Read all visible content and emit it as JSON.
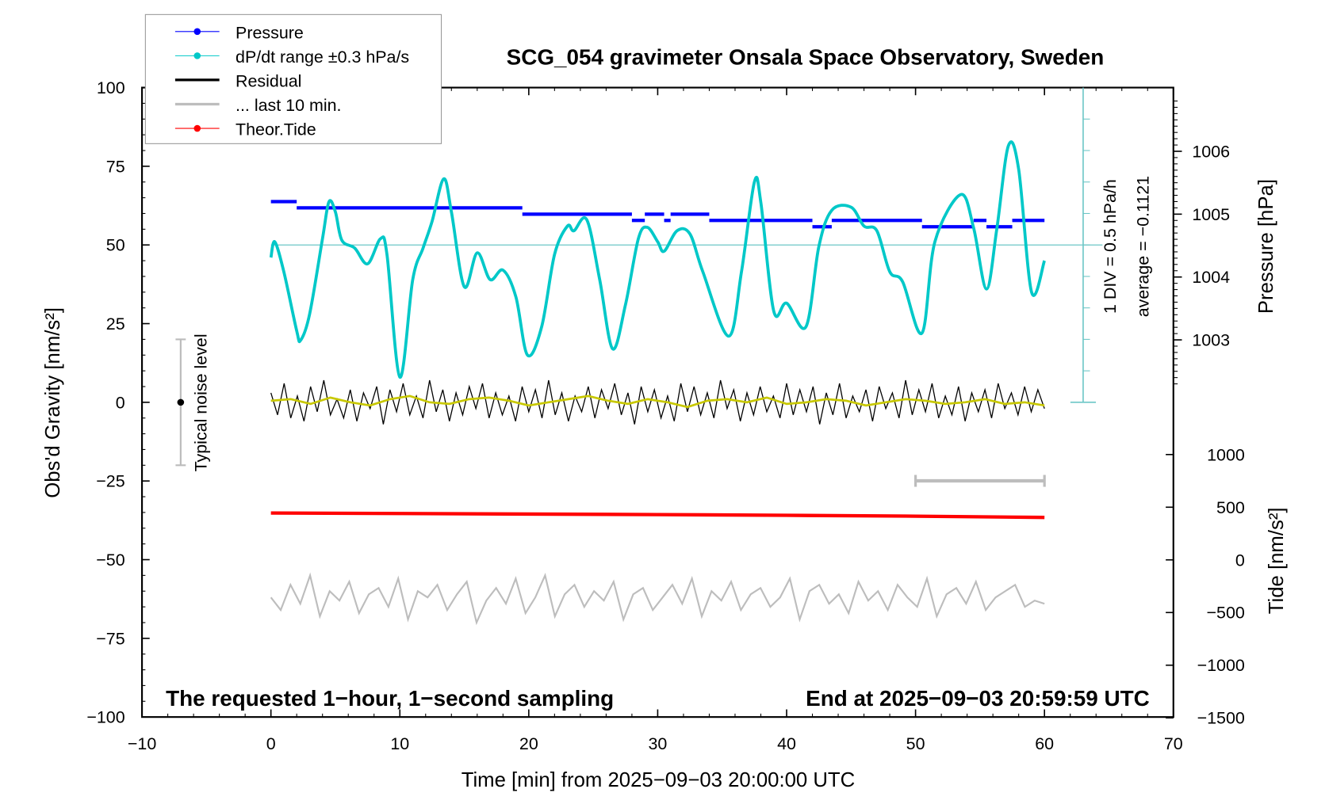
{
  "chart_data": {
    "type": "line",
    "title": "SCG_054 gravimeter Onsala Space Observatory, Sweden",
    "xlabel": "Time [min] from 2025−09−03 20:00:00 UTC",
    "ylabel": "Obs'd Gravity [nm/s²]",
    "ylabel_right_top": "Pressure [hPa]",
    "ylabel_right_bottom": "Tide [nm/s²]",
    "xlim": [
      -10,
      70
    ],
    "ylim": [
      -100,
      100
    ],
    "xticks": [
      "−10",
      "0",
      "10",
      "20",
      "30",
      "40",
      "50",
      "60",
      "70"
    ],
    "yticks": [
      "100",
      "75",
      "50",
      "25",
      "0",
      "−25",
      "−50",
      "−75",
      "−100"
    ],
    "pressure_ticks": [
      "1006",
      "1005",
      "1004",
      "1003"
    ],
    "tide_ticks": [
      "1000",
      "500",
      "0",
      "−500",
      "−1000",
      "−1500"
    ],
    "annotations": {
      "bottom_left": "The requested 1−hour, 1−second sampling",
      "bottom_right": "End at 2025−09−03 20:59:59 UTC",
      "div": "1 DIV = 0.5 hPa/h",
      "average": "average = −0.1121",
      "noise": "Typical noise level"
    },
    "legend": {
      "placement": "top-left",
      "entries": [
        {
          "label": "Pressure",
          "color": "#0000ff"
        },
        {
          "label": "dP/dt range ±0.3 hPa/s",
          "color": "#00c8c8"
        },
        {
          "label": "Residual",
          "color": "#000000"
        },
        {
          "label": "... last 10 min.",
          "color": "#bdbdbd"
        },
        {
          "label": "Theor.Tide",
          "color": "#ff0000"
        }
      ]
    },
    "pressure_steps_hPa": [
      [
        0,
        2,
        1005.2
      ],
      [
        2,
        19.5,
        1005.1
      ],
      [
        19.5,
        28,
        1005.0
      ],
      [
        28,
        29,
        1004.9
      ],
      [
        29,
        30.5,
        1005.0
      ],
      [
        30.5,
        31,
        1004.9
      ],
      [
        31,
        34,
        1005.0
      ],
      [
        34,
        42,
        1004.9
      ],
      [
        42,
        43.5,
        1004.8
      ],
      [
        43.5,
        50.5,
        1004.9
      ],
      [
        50.5,
        54.5,
        1004.8
      ],
      [
        54.5,
        55.5,
        1004.9
      ],
      [
        55.5,
        57.5,
        1004.8
      ],
      [
        57.5,
        60,
        1004.9
      ]
    ],
    "dpdt_curve": {
      "x": [
        0,
        0.3,
        1,
        2,
        2.3,
        3,
        4,
        4.5,
        5,
        5.5,
        6.5,
        7.5,
        8.5,
        9,
        10,
        11,
        11.8,
        12.5,
        13.4,
        14,
        15,
        16,
        17,
        18,
        19,
        19.9,
        21,
        22,
        23,
        23.5,
        24.5,
        25.5,
        26.5,
        27.5,
        28.5,
        29.2,
        30,
        30.5,
        31.5,
        32.5,
        33.5,
        35.5,
        36.5,
        37.5,
        38,
        39,
        40,
        41.5,
        42.5,
        43.5,
        45,
        46,
        47,
        48,
        49,
        50.5,
        51.5,
        53.5,
        54.5,
        55.5,
        56.3,
        57.2,
        58,
        59,
        60
      ],
      "y": [
        46,
        51,
        41.5,
        22.7,
        19.7,
        28,
        52,
        63.7,
        60.5,
        51.5,
        49,
        44,
        52,
        47,
        8,
        39,
        49,
        57.5,
        71,
        60.5,
        36.7,
        47.5,
        39,
        42,
        33.5,
        15,
        24,
        47,
        56,
        54.5,
        58,
        39,
        17,
        31,
        52,
        55.6,
        51,
        48,
        54.5,
        53.5,
        41.5,
        21,
        41.5,
        70,
        63.5,
        29,
        31.5,
        24,
        49.5,
        61,
        62,
        56,
        54.5,
        41.5,
        38.3,
        22,
        51,
        66,
        55.5,
        36,
        55,
        81.5,
        74,
        35,
        45
      ]
    },
    "dpdt_reference_level": 50,
    "residual": [
      3,
      -4,
      6,
      -5,
      2,
      -6,
      5,
      -3,
      7,
      -4,
      1,
      -5,
      4,
      -6,
      3,
      -2,
      5,
      -7,
      4,
      -3,
      6,
      -4,
      2,
      -5,
      7,
      -3,
      4,
      -6,
      3,
      -4,
      5,
      -2,
      6,
      -5,
      3,
      -4,
      2,
      -6,
      5,
      -3,
      4,
      -5,
      7,
      -4,
      3,
      -6,
      2,
      -3,
      5,
      -5,
      4,
      -2,
      6,
      -4,
      3,
      -7,
      5,
      -3,
      4,
      -5,
      2,
      -6,
      6,
      -3,
      5,
      -4,
      3,
      -5,
      7,
      -2,
      4,
      -6,
      3,
      -4,
      5,
      -3,
      2,
      -5,
      6,
      -4,
      4,
      -3,
      5,
      -7,
      3,
      -4,
      6,
      -5,
      2,
      -3,
      4,
      -6,
      5,
      -2,
      3,
      -5,
      7,
      -4,
      4,
      -3,
      6,
      -5,
      2,
      -4,
      5,
      -6,
      3,
      -3,
      4,
      -5,
      6,
      -2,
      3,
      -4,
      5,
      -3,
      4,
      -2
    ],
    "residual_smoothed": [
      0.5,
      1,
      -0.5,
      1.5,
      0,
      -1,
      1,
      2,
      0,
      -0.5,
      1,
      1.5,
      0.5,
      -1,
      0,
      1,
      2,
      0.5,
      -0.5,
      1,
      0,
      -1.5,
      0.5,
      1,
      0,
      1.5,
      -0.5,
      0,
      1,
      0.5,
      -1,
      0,
      1,
      0.5,
      -0.5,
      0,
      1,
      -0.5,
      0,
      -1
    ],
    "last_10_min": [
      -62,
      -66,
      -58,
      -64,
      -55,
      -68,
      -60,
      -63,
      -57,
      -67,
      -61,
      -59,
      -65,
      -56,
      -69,
      -60,
      -62,
      -58,
      -66,
      -61,
      -57,
      -70,
      -63,
      -59,
      -64,
      -56,
      -67,
      -62,
      -55,
      -68,
      -61,
      -58,
      -65,
      -60,
      -63,
      -57,
      -69,
      -61,
      -59,
      -66,
      -62,
      -58,
      -64,
      -56,
      -68,
      -60,
      -63,
      -57,
      -66,
      -61,
      -59,
      -65,
      -62,
      -56,
      -69,
      -60,
      -58,
      -64,
      -61,
      -67,
      -57,
      -63,
      -60,
      -66,
      -58,
      -62,
      -65,
      -56,
      -68,
      -61,
      -59,
      -64,
      -57,
      -66,
      -62,
      -60,
      -58,
      -65,
      -63,
      -64
    ],
    "last_10_min_window": [
      50,
      60
    ],
    "tide_nm_s2": {
      "x": [
        0,
        10,
        20,
        30,
        40,
        50,
        60
      ],
      "y": [
        445,
        440,
        435,
        430,
        423,
        415,
        403
      ]
    },
    "noise_level": {
      "x": -7,
      "center": 0,
      "halfwidth": 20
    },
    "colors": {
      "pressure": "#0000ff",
      "dpdt": "#00c8c8",
      "dpdt_axis": "#6cc6c6",
      "residual": "#000000",
      "smoothed": "#c8c800",
      "last10": "#bdbdbd",
      "tide": "#ff0000"
    }
  }
}
